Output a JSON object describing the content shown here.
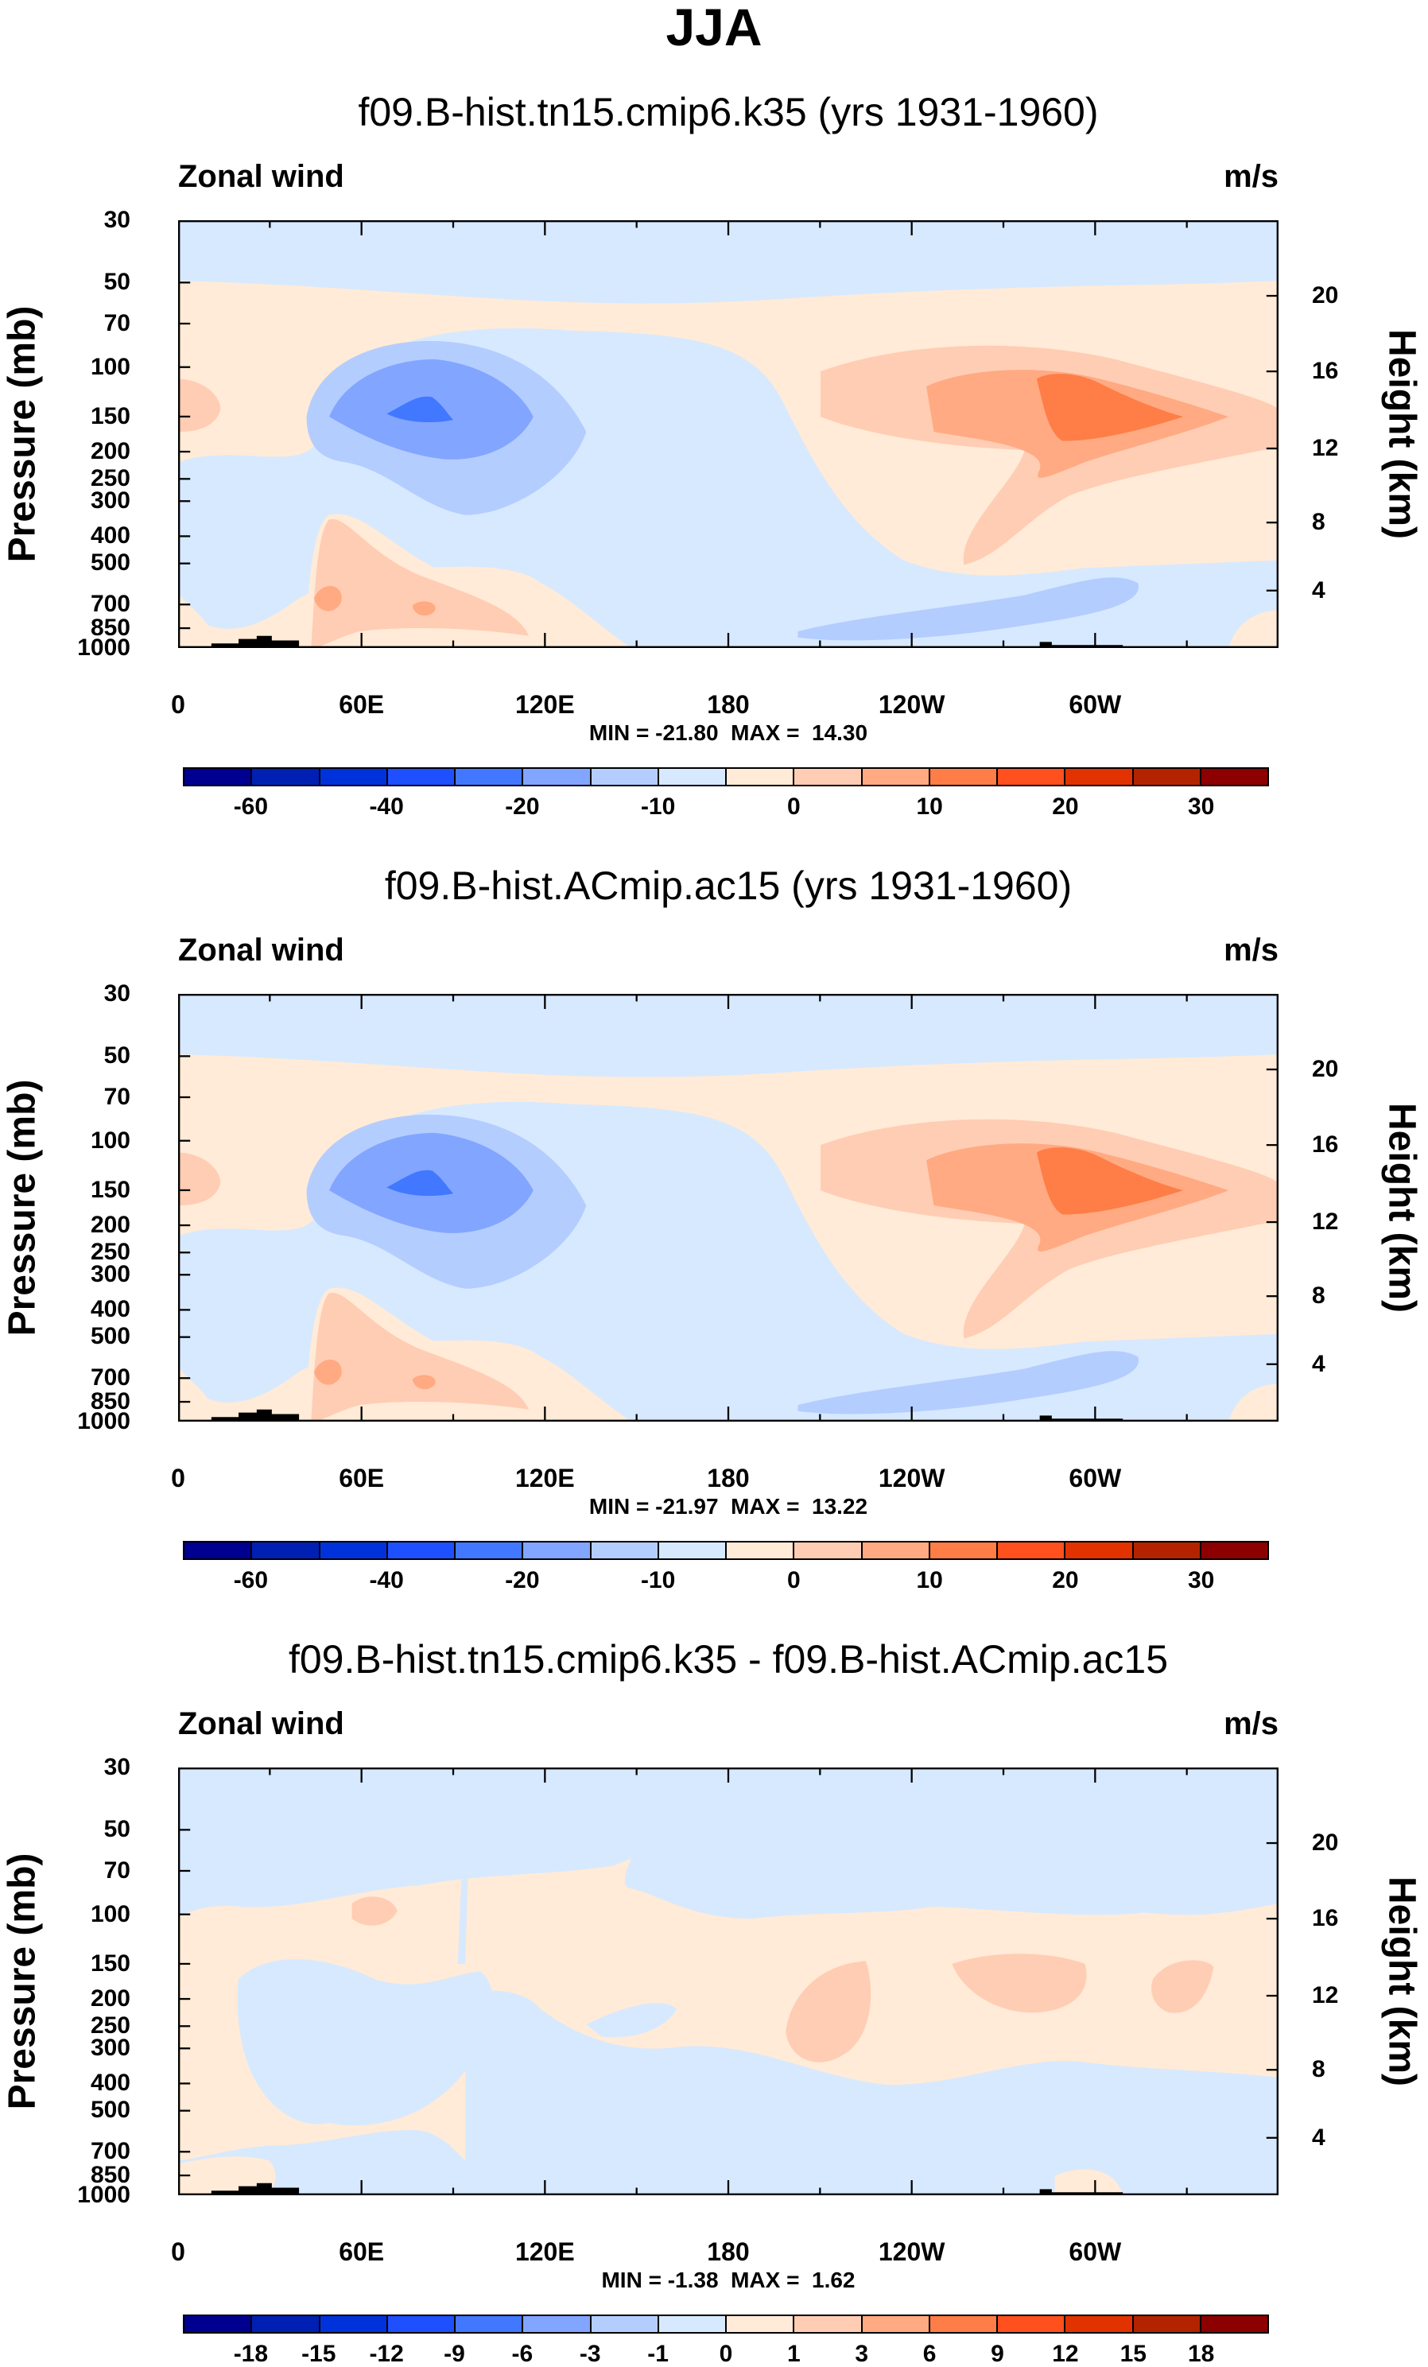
{
  "title": "JJA",
  "colors": [
    "#000090",
    "#0020b4",
    "#0032dc",
    "#1e50ff",
    "#4178ff",
    "#82a5ff",
    "#b4cdff",
    "#d7e9ff",
    "#ffebd7",
    "#ffcdb4",
    "#ffaa82",
    "#ff7d46",
    "#ff501e",
    "#e13200",
    "#b42300",
    "#8c0000"
  ],
  "chart_data": [
    {
      "type": "heatmap",
      "title": "f09.B-hist.tn15.cmip6.k35 (yrs 1931-1960)",
      "left_label": "Zonal wind",
      "right_label": "m/s",
      "ylabel": "Pressure (mb)",
      "y2label": "Height (km)",
      "yticks": [
        30,
        50,
        70,
        100,
        150,
        200,
        250,
        300,
        400,
        500,
        700,
        850,
        1000
      ],
      "y2ticks": [
        "20",
        "16",
        "12",
        "8",
        "4"
      ],
      "xticks": [
        "0",
        "60E",
        "120E",
        "180",
        "120W",
        "60W"
      ],
      "xtick_lon": [
        0,
        60,
        120,
        180,
        240,
        300
      ],
      "ylim": [
        1000,
        30
      ],
      "minmax": "MIN = -21.80  MAX =  14.30",
      "min": -21.8,
      "max": 14.3,
      "levels": [
        -60,
        -50,
        -40,
        -30,
        -20,
        -15,
        -10,
        -5,
        0,
        5,
        10,
        15,
        20,
        25,
        30
      ],
      "colorbar_labels": [
        "-60",
        "",
        "-40",
        "",
        "-20",
        "",
        "-10",
        "",
        "0",
        "",
        "10",
        "",
        "20",
        "",
        "30"
      ]
    },
    {
      "type": "heatmap",
      "title": "f09.B-hist.ACmip.ac15 (yrs 1931-1960)",
      "left_label": "Zonal wind",
      "right_label": "m/s",
      "ylabel": "Pressure (mb)",
      "y2label": "Height (km)",
      "yticks": [
        30,
        50,
        70,
        100,
        150,
        200,
        250,
        300,
        400,
        500,
        700,
        850,
        1000
      ],
      "y2ticks": [
        "20",
        "16",
        "12",
        "8",
        "4"
      ],
      "xticks": [
        "0",
        "60E",
        "120E",
        "180",
        "120W",
        "60W"
      ],
      "xtick_lon": [
        0,
        60,
        120,
        180,
        240,
        300
      ],
      "ylim": [
        1000,
        30
      ],
      "minmax": "MIN = -21.97  MAX =  13.22",
      "min": -21.97,
      "max": 13.22,
      "levels": [
        -60,
        -50,
        -40,
        -30,
        -20,
        -15,
        -10,
        -5,
        0,
        5,
        10,
        15,
        20,
        25,
        30
      ],
      "colorbar_labels": [
        "-60",
        "",
        "-40",
        "",
        "-20",
        "",
        "-10",
        "",
        "0",
        "",
        "10",
        "",
        "20",
        "",
        "30"
      ]
    },
    {
      "type": "heatmap",
      "title": "f09.B-hist.tn15.cmip6.k35 - f09.B-hist.ACmip.ac15",
      "left_label": "Zonal wind",
      "right_label": "m/s",
      "ylabel": "Pressure (mb)",
      "y2label": "Height (km)",
      "yticks": [
        30,
        50,
        70,
        100,
        150,
        200,
        250,
        300,
        400,
        500,
        700,
        850,
        1000
      ],
      "y2ticks": [
        "20",
        "16",
        "12",
        "8",
        "4"
      ],
      "xticks": [
        "0",
        "60E",
        "120E",
        "180",
        "120W",
        "60W"
      ],
      "xtick_lon": [
        0,
        60,
        120,
        180,
        240,
        300
      ],
      "ylim": [
        1000,
        30
      ],
      "minmax": "MIN = -1.38  MAX =  1.62",
      "min": -1.38,
      "max": 1.62,
      "levels": [
        -18,
        -15,
        -12,
        -9,
        -6,
        -3,
        -1,
        0,
        1,
        3,
        6,
        9,
        12,
        15,
        18
      ],
      "colorbar_labels": [
        "-18",
        "-15",
        "-12",
        "-9",
        "-6",
        "-3",
        "-1",
        "0",
        "1",
        "3",
        "6",
        "9",
        "12",
        "15",
        "18"
      ]
    }
  ]
}
